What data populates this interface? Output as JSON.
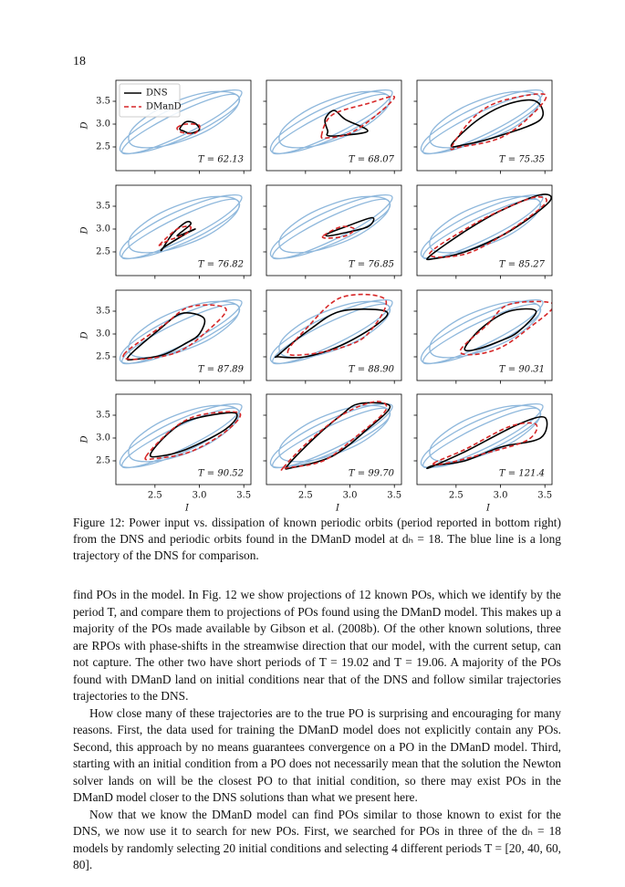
{
  "page_number": "18",
  "background_series": {
    "color": "#8fb8dc",
    "x": [
      3.47,
      3.135,
      2.6,
      2.185,
      2.13,
      2.465,
      3.0,
      3.415,
      3.39,
      3.04,
      2.565,
      2.24,
      2.25,
      2.6,
      3.075,
      3.4,
      3.42,
      3.13,
      2.64,
      2.23,
      2.14,
      2.43,
      2.92,
      3.33
    ],
    "y": [
      3.72,
      3.665,
      3.25,
      2.715,
      2.38,
      2.435,
      2.85,
      3.385,
      3.67,
      3.68,
      3.355,
      2.88,
      2.53,
      2.52,
      2.845,
      3.32,
      3.64,
      3.55,
      3.14,
      2.65,
      2.36,
      2.45,
      2.86,
      3.35
    ]
  },
  "chart_data": [
    {
      "type": "line",
      "annotation": "T = 62.13",
      "legend": "upper left",
      "ylabel": "D",
      "xlim": [
        2.06,
        3.58
      ],
      "ylim": [
        1.98,
        3.96
      ],
      "yticks": [
        2.5,
        {
          "value": 3,
          "label": "3.0"
        },
        3.5
      ],
      "series": [
        {
          "name": "DNS",
          "color": "#000000",
          "x": [
            2.78,
            2.85,
            2.95,
            3.0,
            2.9,
            2.82
          ],
          "y": [
            2.9,
            3.05,
            3.02,
            2.88,
            2.8,
            2.85
          ]
        },
        {
          "name": "DManD",
          "color": "#d62728",
          "linestyle": "dashed",
          "x": [
            2.75,
            2.85,
            3.0,
            2.95,
            2.8
          ],
          "y": [
            2.92,
            3.0,
            2.97,
            2.8,
            2.82
          ]
        }
      ]
    },
    {
      "type": "line",
      "annotation": "T = 68.07",
      "xlim": [
        2.06,
        3.58
      ],
      "ylim": [
        1.98,
        3.96
      ],
      "series": [
        {
          "color": "#000000",
          "x": [
            2.75,
            2.72,
            2.82,
            2.95,
            3.2,
            2.9,
            2.75
          ],
          "y": [
            2.85,
            3.1,
            3.3,
            3.1,
            2.85,
            2.75,
            2.75
          ]
        },
        {
          "color": "#d62728",
          "linestyle": "dashed",
          "x": [
            2.68,
            2.8,
            3.2,
            3.5,
            3.3,
            3.0,
            2.75
          ],
          "y": [
            2.75,
            3.2,
            3.45,
            3.6,
            3.2,
            2.8,
            2.7
          ]
        }
      ]
    },
    {
      "type": "line",
      "annotation": "T = 75.35",
      "xlim": [
        2.06,
        3.58
      ],
      "ylim": [
        1.98,
        3.96
      ],
      "series": [
        {
          "color": "#000000",
          "x": [
            2.45,
            2.75,
            3.1,
            3.4,
            3.45,
            3.0,
            2.6
          ],
          "y": [
            2.55,
            3.1,
            3.45,
            3.5,
            3.1,
            2.75,
            2.55
          ]
        },
        {
          "color": "#d62728",
          "linestyle": "dashed",
          "x": [
            2.45,
            2.7,
            3.0,
            3.5,
            3.35,
            3.0,
            2.55
          ],
          "y": [
            2.5,
            3.15,
            3.5,
            3.65,
            3.2,
            2.7,
            2.5
          ]
        }
      ]
    },
    {
      "type": "line",
      "annotation": "T = 76.82",
      "ylabel": "D",
      "xlim": [
        2.06,
        3.58
      ],
      "ylim": [
        1.98,
        3.96
      ],
      "yticks": [
        2.5,
        {
          "value": 3,
          "label": "3.0"
        },
        3.5
      ],
      "series": [
        {
          "color": "#000000",
          "x": [
            2.58,
            2.7,
            2.85,
            2.9,
            2.75,
            2.95,
            2.85,
            2.6
          ],
          "y": [
            2.55,
            2.9,
            3.15,
            3.1,
            2.85,
            3.0,
            2.9,
            2.6
          ]
        },
        {
          "color": "#d62728",
          "linestyle": "dashed",
          "x": [
            2.55,
            2.75,
            2.9,
            2.85,
            2.65
          ],
          "y": [
            2.65,
            3.0,
            3.05,
            2.9,
            2.75
          ]
        }
      ]
    },
    {
      "type": "line",
      "annotation": "T = 76.85",
      "xlim": [
        2.06,
        3.58
      ],
      "ylim": [
        1.98,
        3.96
      ],
      "series": [
        {
          "color": "#000000",
          "x": [
            2.75,
            2.95,
            3.25,
            3.2,
            2.9,
            2.75
          ],
          "y": [
            2.9,
            3.05,
            3.25,
            3.05,
            2.9,
            2.85
          ]
        },
        {
          "color": "#d62728",
          "linestyle": "dashed",
          "x": [
            2.7,
            2.9,
            3.05,
            2.95,
            2.75
          ],
          "y": [
            2.85,
            3.05,
            3.0,
            2.85,
            2.8
          ]
        }
      ]
    },
    {
      "type": "line",
      "annotation": "T = 85.27",
      "xlim": [
        2.06,
        3.58
      ],
      "ylim": [
        1.98,
        3.96
      ],
      "series": [
        {
          "color": "#000000",
          "x": [
            2.2,
            2.6,
            3.0,
            3.45,
            3.55,
            3.1,
            2.6,
            2.25
          ],
          "y": [
            2.4,
            2.95,
            3.4,
            3.75,
            3.6,
            2.95,
            2.5,
            2.35
          ]
        },
        {
          "color": "#d62728",
          "linestyle": "dashed",
          "x": [
            2.2,
            2.65,
            3.05,
            3.4,
            3.5,
            3.05,
            2.6
          ],
          "y": [
            2.45,
            3.05,
            3.45,
            3.7,
            3.55,
            2.9,
            2.45
          ]
        }
      ]
    },
    {
      "type": "line",
      "annotation": "T = 87.89",
      "ylabel": "D",
      "xlim": [
        2.06,
        3.58
      ],
      "ylim": [
        1.98,
        3.96
      ],
      "yticks": [
        2.5,
        {
          "value": 3,
          "label": "3.0"
        },
        3.5
      ],
      "series": [
        {
          "color": "#000000",
          "x": [
            2.2,
            2.55,
            2.8,
            3.05,
            3.0,
            2.85,
            2.6,
            2.3
          ],
          "y": [
            2.5,
            3.1,
            3.45,
            3.35,
            3.0,
            2.8,
            2.55,
            2.45
          ]
        },
        {
          "color": "#d62728",
          "linestyle": "dashed",
          "x": [
            2.15,
            2.6,
            2.9,
            3.3,
            3.05,
            2.75,
            2.35
          ],
          "y": [
            2.55,
            3.2,
            3.6,
            3.55,
            3.0,
            2.6,
            2.45
          ]
        }
      ]
    },
    {
      "type": "line",
      "annotation": "T = 88.90",
      "xlim": [
        2.06,
        3.58
      ],
      "ylim": [
        1.98,
        3.96
      ],
      "series": [
        {
          "color": "#000000",
          "x": [
            2.2,
            2.55,
            2.9,
            3.4,
            3.3,
            2.9,
            2.5,
            2.2
          ],
          "y": [
            2.55,
            3.1,
            3.5,
            3.5,
            3.2,
            2.75,
            2.5,
            2.5
          ]
        },
        {
          "color": "#d62728",
          "linestyle": "dashed",
          "x": [
            2.3,
            2.5,
            2.9,
            3.4,
            3.2,
            2.9,
            2.5
          ],
          "y": [
            2.6,
            3.1,
            3.8,
            3.75,
            3.0,
            2.7,
            2.55
          ]
        }
      ]
    },
    {
      "type": "line",
      "annotation": "T = 90.31",
      "xlim": [
        2.06,
        3.58
      ],
      "ylim": [
        1.98,
        3.96
      ],
      "series": [
        {
          "color": "#000000",
          "x": [
            2.6,
            2.8,
            3.1,
            3.4,
            3.2,
            3.0,
            2.7
          ],
          "y": [
            2.7,
            3.15,
            3.5,
            3.5,
            3.05,
            2.85,
            2.65
          ]
        },
        {
          "color": "#d62728",
          "linestyle": "dashed",
          "x": [
            2.55,
            2.85,
            3.1,
            3.6,
            3.3,
            3.0,
            2.7
          ],
          "y": [
            2.65,
            3.2,
            3.65,
            3.65,
            3.1,
            2.7,
            2.55
          ]
        }
      ]
    },
    {
      "type": "line",
      "annotation": "T = 90.52",
      "ylabel": "D",
      "xlabel": "I",
      "xlim": [
        2.06,
        3.58
      ],
      "ylim": [
        1.98,
        3.96
      ],
      "yticks": [
        2.5,
        {
          "value": 3,
          "label": "3.0"
        },
        3.5
      ],
      "xticks": [
        2.5,
        {
          "value": 3,
          "label": "3.0"
        },
        3.5
      ],
      "series": [
        {
          "color": "#000000",
          "x": [
            2.45,
            2.65,
            2.9,
            3.4,
            3.3,
            2.85,
            2.55
          ],
          "y": [
            2.65,
            3.1,
            3.4,
            3.55,
            3.2,
            2.75,
            2.6
          ]
        },
        {
          "color": "#d62728",
          "linestyle": "dashed",
          "x": [
            2.4,
            2.7,
            3.0,
            3.45,
            3.3,
            2.9,
            2.5
          ],
          "y": [
            2.6,
            3.2,
            3.5,
            3.55,
            3.15,
            2.7,
            2.55
          ]
        }
      ]
    },
    {
      "type": "line",
      "annotation": "T = 99.70",
      "xlabel": "I",
      "xlim": [
        2.06,
        3.58
      ],
      "ylim": [
        1.98,
        3.96
      ],
      "xticks": [
        2.5,
        {
          "value": 3,
          "label": "3.0"
        },
        3.5
      ],
      "series": [
        {
          "color": "#000000",
          "x": [
            2.3,
            2.6,
            2.9,
            3.1,
            3.45,
            3.2,
            2.8,
            2.35
          ],
          "y": [
            2.4,
            3.0,
            3.5,
            3.75,
            3.7,
            3.2,
            2.6,
            2.35
          ]
        },
        {
          "color": "#d62728",
          "linestyle": "dashed",
          "x": [
            2.25,
            2.55,
            2.95,
            3.3,
            3.4,
            3.05,
            2.7,
            2.3
          ],
          "y": [
            2.35,
            2.95,
            3.55,
            3.8,
            3.6,
            3.0,
            2.5,
            2.35
          ]
        }
      ]
    },
    {
      "type": "line",
      "annotation": "T = 121.4",
      "xlabel": "I",
      "xlim": [
        2.06,
        3.58
      ],
      "ylim": [
        1.98,
        3.96
      ],
      "xticks": [
        2.5,
        {
          "value": 3,
          "label": "3.0"
        },
        3.5
      ],
      "series": [
        {
          "color": "#000000",
          "x": [
            2.2,
            2.6,
            3.2,
            3.5,
            3.45,
            3.0,
            2.6,
            2.25
          ],
          "y": [
            2.35,
            2.7,
            3.3,
            3.45,
            3.0,
            2.8,
            2.5,
            2.4
          ]
        },
        {
          "color": "#d62728",
          "linestyle": "dashed",
          "x": [
            2.25,
            2.6,
            3.1,
            3.4,
            3.3,
            2.8,
            2.4
          ],
          "y": [
            2.45,
            2.75,
            3.25,
            3.3,
            2.95,
            2.65,
            2.45
          ]
        }
      ]
    }
  ],
  "caption": "Figure 12: Power input vs. dissipation of known periodic orbits (period reported in bottom right) from the DNS and periodic orbits found in the DManD model at dₕ = 18. The blue line is a long trajectory of the DNS for comparison.",
  "paragraphs": [
    "find POs in the model. In Fig. 12 we show projections of 12 known POs, which we identify by the period T, and compare them to projections of POs found using the DManD model. This makes up a majority of the POs made available by Gibson et al. (2008b). Of the other known solutions, three are RPOs with phase-shifts in the streamwise direction that our model, with the current setup, can not capture. The other two have short periods of T = 19.02 and T = 19.06. A majority of the POs found with DManD land on initial conditions near that of the DNS and follow similar trajectories trajectories to the DNS.",
    "How close many of these trajectories are to the true PO is surprising and encouraging for many reasons. First, the data used for training the DManD model does not explicitly contain any POs. Second, this approach by no means guarantees convergence on a PO in the DManD model. Third, starting with an initial condition from a PO does not necessarily mean that the solution the Newton solver lands on will be the closest PO to that initial condition, so there may exist POs in the DManD model closer to the DNS solutions than what we present here.",
    "Now that we know the DManD model can find POs similar to those known to exist for the DNS, we now use it to search for new POs. First, we searched for POs in three of the dₕ = 18 models by randomly selecting 20 initial conditions and selecting 4 different periods T = [20, 40, 60, 80]."
  ]
}
